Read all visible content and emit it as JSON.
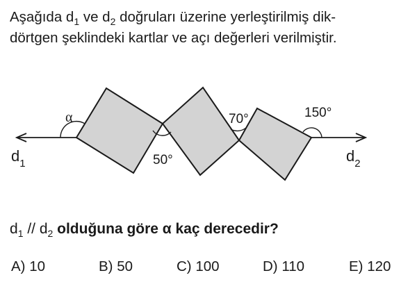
{
  "intro": {
    "line1_a": "Aşağıda d",
    "line1_sub1": "1",
    "line1_b": " ve  d",
    "line1_sub2": "2",
    "line1_c": "  doğruları üzerine yerleştirilmiş dik-",
    "line2": "dörtgen şeklindeki kartlar ve açı değerleri verilmiştir."
  },
  "figure": {
    "line1_label": "d",
    "line1_sub": "1",
    "line2_label": "d",
    "line2_sub": "2",
    "angles": {
      "alpha": "α",
      "a50": "50°",
      "a70": "70°",
      "a150": "150°"
    },
    "card_fill": "#d3d3d3",
    "stroke": "#1a1a1a"
  },
  "question": {
    "d1": "d",
    "sub1": "1",
    "parallel": " // d",
    "sub2": "2",
    "text": " olduğuna göre α kaç derecedir?"
  },
  "choices": [
    {
      "label": "A) 10"
    },
    {
      "label": "B) 50"
    },
    {
      "label": "C) 100"
    },
    {
      "label": "D) 110"
    },
    {
      "label": "E) 120"
    }
  ]
}
